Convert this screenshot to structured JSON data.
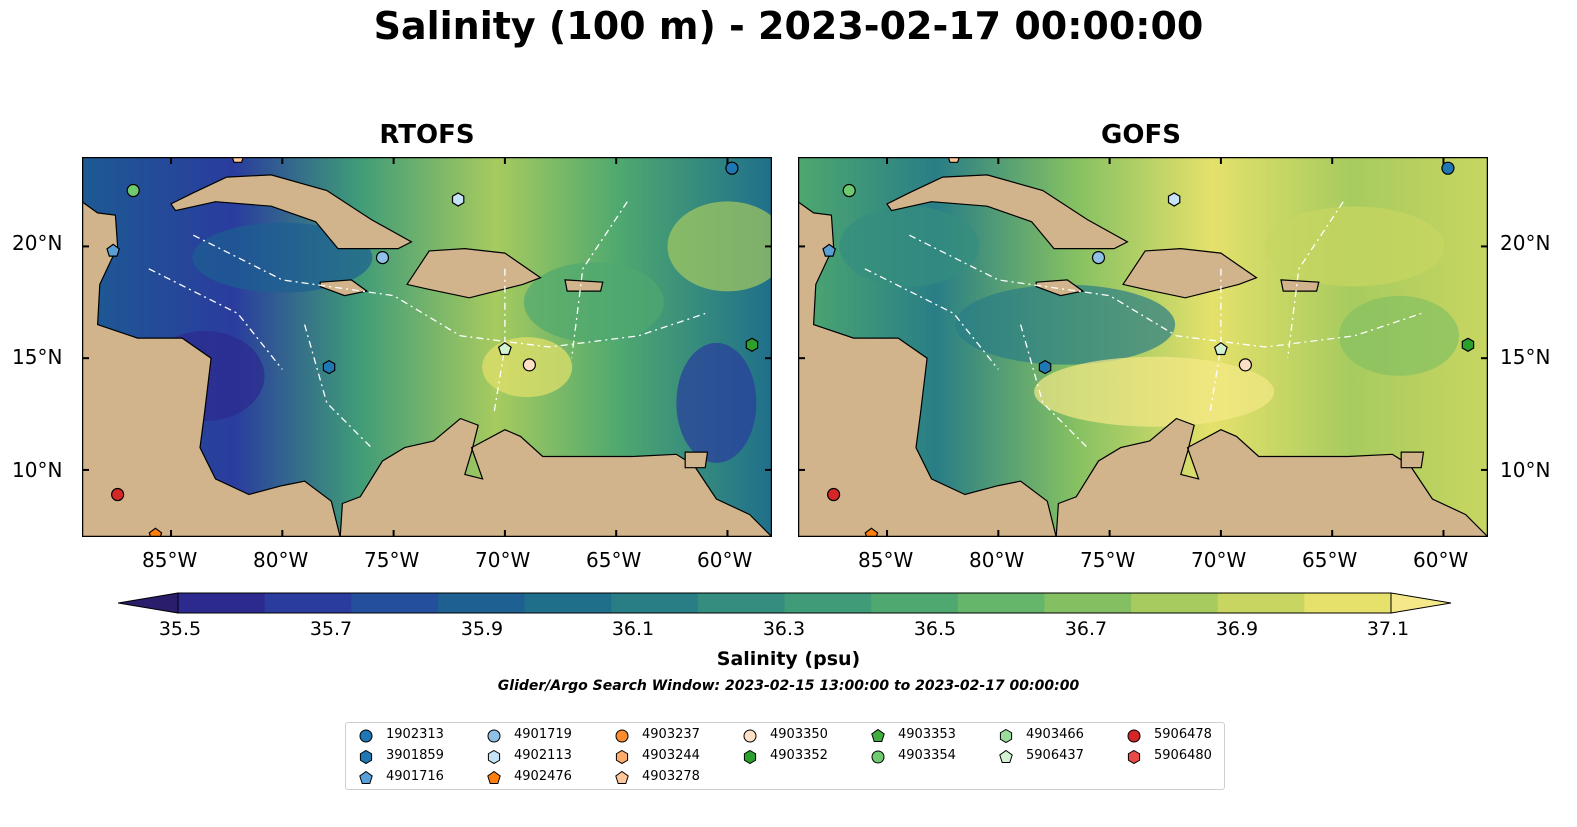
{
  "figure": {
    "title": "Salinity (100 m) - 2023-02-17 00:00:00",
    "search_window": "Glider/Argo Search Window: 2023-02-15 13:00:00 to 2023-02-17 00:00:00"
  },
  "panels": [
    {
      "title": "RTOFS"
    },
    {
      "title": "GOFS"
    }
  ],
  "axes": {
    "lon_labels": [
      "85°W",
      "80°W",
      "75°W",
      "70°W",
      "65°W",
      "60°W"
    ],
    "lat_labels": [
      "20°N",
      "15°N",
      "10°N"
    ],
    "lon_range": [
      -89,
      -58
    ],
    "lat_range": [
      7,
      24
    ]
  },
  "colorbar": {
    "label": "Salinity (psu)",
    "ticks": [
      "35.5",
      "35.7",
      "35.9",
      "36.1",
      "36.3",
      "36.5",
      "36.7",
      "36.9",
      "37.1"
    ],
    "range": [
      35.5,
      37.2
    ],
    "colors": [
      "#2a1d6b",
      "#2c2a8f",
      "#2a3c9e",
      "#234f9c",
      "#1d6091",
      "#1f6f8b",
      "#297e86",
      "#348d7f",
      "#3f9b78",
      "#4ea86f",
      "#65b56a",
      "#84c062",
      "#a7cb5f",
      "#c8d661",
      "#e5e16b",
      "#f5e888"
    ],
    "extend": "both"
  },
  "legend": {
    "items": [
      {
        "id": "1902313",
        "marker": "circle",
        "color": "#1f77b4"
      },
      {
        "id": "3901859",
        "marker": "hexagon",
        "color": "#1f77b4"
      },
      {
        "id": "4901716",
        "marker": "pentagon",
        "color": "#5aa0d8"
      },
      {
        "id": "4901719",
        "marker": "circle",
        "color": "#8fc1e6"
      },
      {
        "id": "4902113",
        "marker": "hexagon",
        "color": "#c6e2f5"
      },
      {
        "id": "4902476",
        "marker": "pentagon",
        "color": "#ff7f0e"
      },
      {
        "id": "4903237",
        "marker": "circle",
        "color": "#ff8c2e"
      },
      {
        "id": "4903244",
        "marker": "hexagon",
        "color": "#ffab6b"
      },
      {
        "id": "4903278",
        "marker": "pentagon",
        "color": "#ffc79a"
      },
      {
        "id": "4903350",
        "marker": "circle",
        "color": "#fde0c5"
      },
      {
        "id": "4903352",
        "marker": "hexagon",
        "color": "#2ca02c"
      },
      {
        "id": "4903353",
        "marker": "pentagon",
        "color": "#3fae3f"
      },
      {
        "id": "4903354",
        "marker": "circle",
        "color": "#6fca6f"
      },
      {
        "id": "4903466",
        "marker": "hexagon",
        "color": "#9bdb9b"
      },
      {
        "id": "5906437",
        "marker": "pentagon",
        "color": "#d2f2d2"
      },
      {
        "id": "5906478",
        "marker": "circle",
        "color": "#d62728"
      },
      {
        "id": "5906480",
        "marker": "hexagon",
        "color": "#e84a4a"
      }
    ]
  },
  "floats": [
    {
      "id": "1902313",
      "lon": -59.8,
      "lat": 23.5
    },
    {
      "id": "4901716",
      "lon": -87.6,
      "lat": 19.8
    },
    {
      "id": "4903354",
      "lon": -86.7,
      "lat": 22.5
    },
    {
      "id": "4901719",
      "lon": -75.5,
      "lat": 19.5
    },
    {
      "id": "4902113",
      "lon": -72.1,
      "lat": 22.1
    },
    {
      "id": "3901859",
      "lon": -77.9,
      "lat": 14.6
    },
    {
      "id": "5906437",
      "lon": -70.0,
      "lat": 15.4
    },
    {
      "id": "4903350",
      "lon": -68.9,
      "lat": 14.7
    },
    {
      "id": "4903352",
      "lon": -58.9,
      "lat": 15.6
    },
    {
      "id": "5906478",
      "lon": -87.4,
      "lat": 8.9
    },
    {
      "id": "4902476",
      "lon": -85.7,
      "lat": 7.1
    },
    {
      "id": "4903278",
      "lon": -82.0,
      "lat": 24.0
    }
  ]
}
